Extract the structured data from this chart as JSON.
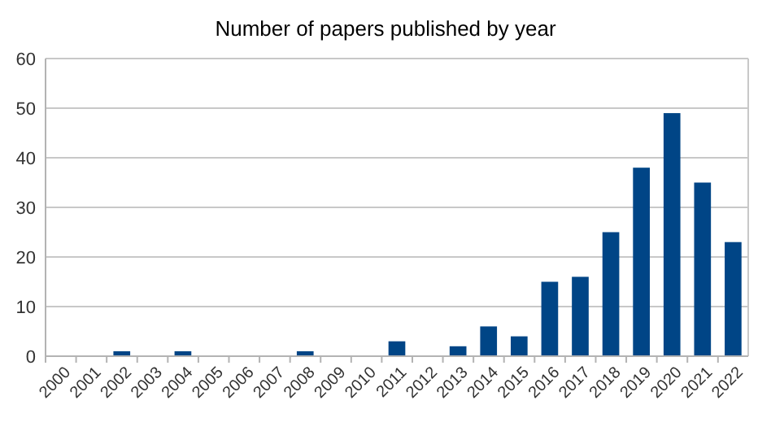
{
  "chart_data": {
    "type": "bar",
    "title": "Number of papers published by year",
    "categories": [
      "2000",
      "2001",
      "2002",
      "2003",
      "2004",
      "2005",
      "2006",
      "2007",
      "2008",
      "2009",
      "2010",
      "2011",
      "2012",
      "2013",
      "2014",
      "2015",
      "2016",
      "2017",
      "2018",
      "2019",
      "2020",
      "2021",
      "2022"
    ],
    "values": [
      0,
      0,
      1,
      0,
      1,
      0,
      0,
      0,
      1,
      0,
      0,
      3,
      0,
      2,
      6,
      4,
      15,
      16,
      25,
      38,
      49,
      35,
      23
    ],
    "color": "#004586",
    "ylim": [
      0,
      60
    ],
    "yticks": [
      0,
      10,
      20,
      30,
      40,
      50,
      60
    ],
    "grid": "y"
  }
}
